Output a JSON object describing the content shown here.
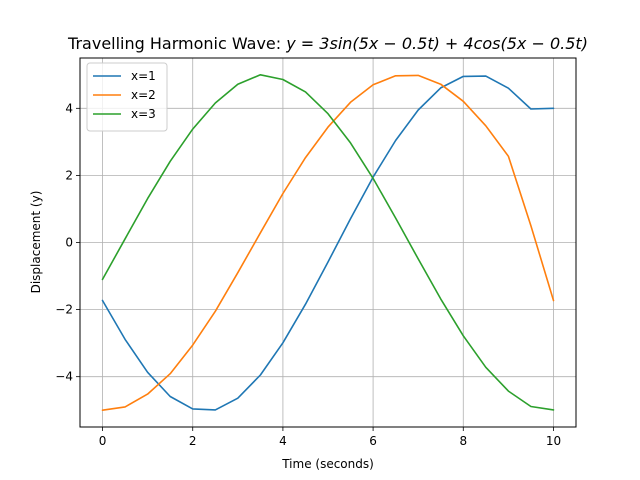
{
  "chart_data": {
    "type": "line",
    "title_prefix": "Travelling Harmonic Wave: ",
    "title_equation": "y = 3sin(5x − 0.5t) + 4cos(5x − 0.5t)",
    "xlabel": "Time (seconds)",
    "ylabel": "Displacement (y)",
    "xlim": [
      -0.5,
      10.5
    ],
    "ylim": [
      -5.5,
      5.5
    ],
    "xticks": [
      0,
      2,
      4,
      6,
      8,
      10
    ],
    "yticks": [
      -4,
      -2,
      0,
      2,
      4
    ],
    "xtick_labels": [
      "0",
      "2",
      "4",
      "6",
      "8",
      "10"
    ],
    "ytick_labels": [
      "−4",
      "−2",
      "0",
      "2",
      "4"
    ],
    "grid": true,
    "legend_position": "top-left",
    "series": [
      {
        "name": "x=1",
        "color": "#1f77b4",
        "x": [
          0,
          0.5,
          1,
          1.5,
          2,
          2.5,
          3,
          3.5,
          4,
          4.5,
          5,
          5.5,
          6,
          6.5,
          7,
          7.5,
          8,
          8.5,
          9,
          9.5,
          10
        ],
        "y": [
          -1.73,
          -2.89,
          -3.87,
          -4.59,
          -4.96,
          -4.99,
          -4.64,
          -3.95,
          -2.99,
          -1.84,
          -0.58,
          0.71,
          1.95,
          3.04,
          3.95,
          4.61,
          4.95,
          4.96,
          4.6,
          3.98,
          4.0
        ]
      },
      {
        "name": "x=2",
        "color": "#ff7f0e",
        "x": [
          0,
          0.5,
          1,
          1.5,
          2,
          2.5,
          3,
          3.5,
          4,
          4.5,
          5,
          5.5,
          6,
          6.5,
          7,
          7.5,
          8,
          8.5,
          9,
          9.5,
          10
        ],
        "y": [
          -5.0,
          -4.9,
          -4.52,
          -3.91,
          -3.06,
          -2.05,
          -0.9,
          0.29,
          1.46,
          2.53,
          3.44,
          4.18,
          4.7,
          4.97,
          4.98,
          4.72,
          4.21,
          3.48,
          2.57,
          0.5,
          -1.73
        ]
      },
      {
        "name": "x=3",
        "color": "#2ca02c",
        "x": [
          0,
          0.5,
          1,
          1.5,
          2,
          2.5,
          3,
          3.5,
          4,
          4.5,
          5,
          5.5,
          6,
          6.5,
          7,
          7.5,
          8,
          8.5,
          9,
          9.5,
          10
        ],
        "y": [
          -1.1,
          0.11,
          1.31,
          2.42,
          3.38,
          4.16,
          4.72,
          5.0,
          4.86,
          4.49,
          3.84,
          2.97,
          1.91,
          0.73,
          -0.49,
          -1.68,
          -2.78,
          -3.72,
          -4.43,
          -4.89,
          -4.99
        ]
      }
    ]
  }
}
